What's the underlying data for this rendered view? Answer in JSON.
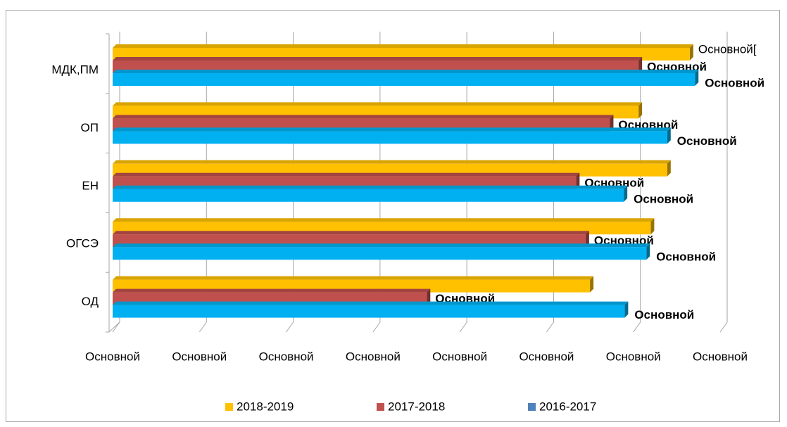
{
  "chart_data": {
    "type": "bar",
    "orientation": "horizontal",
    "three_d": true,
    "categories": [
      "МДК,ПМ",
      "ОП",
      "ЕН",
      "ОГСЭ",
      "ОД"
    ],
    "series": [
      {
        "name": "2018-2019",
        "color": "#FFC000",
        "legend_color": "#FFC000",
        "values": [
          6.65,
          6.06,
          6.39,
          6.2,
          5.5
        ],
        "value_labels": [
          "Основной[",
          null,
          null,
          null,
          null
        ],
        "label_bold": false
      },
      {
        "name": "2017-2018",
        "color": "#C0504D",
        "legend_color": "#C0504D",
        "values": [
          6.06,
          5.73,
          5.34,
          5.45,
          3.62
        ],
        "value_labels": [
          "Основной",
          "Основной",
          "Основной",
          "Основной",
          "Основной"
        ],
        "label_bold": true
      },
      {
        "name": "2016-2017",
        "color": "#00B0F0",
        "legend_color": "#4F81BD",
        "values": [
          6.71,
          6.39,
          5.89,
          6.15,
          5.9
        ],
        "value_labels": [
          "Основной",
          "Основной",
          "Основной",
          "Основной",
          "Основной"
        ],
        "label_bold": true
      }
    ],
    "xlim": [
      0,
      7
    ],
    "xticks": [
      {
        "value": 0,
        "label": "Основной"
      },
      {
        "value": 1,
        "label": "Основной"
      },
      {
        "value": 2,
        "label": "Основной"
      },
      {
        "value": 3,
        "label": "Основной"
      },
      {
        "value": 4,
        "label": "Основной"
      },
      {
        "value": 5,
        "label": "Основной"
      },
      {
        "value": 6,
        "label": "Основной"
      },
      {
        "value": 7,
        "label": "Основной"
      }
    ],
    "grid": true,
    "legend": "bottom"
  }
}
